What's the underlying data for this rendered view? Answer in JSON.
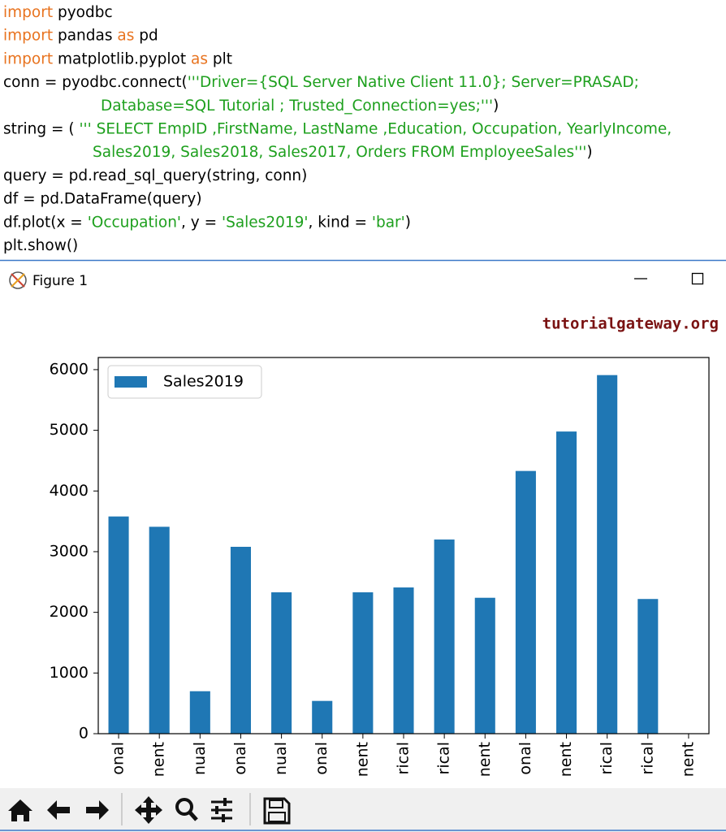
{
  "code": {
    "lines": [
      [
        {
          "text": "import",
          "color": "#e8731f"
        },
        {
          "text": " pyodbc",
          "color": "#000000"
        }
      ],
      [
        {
          "text": "import",
          "color": "#e8731f"
        },
        {
          "text": " pandas ",
          "color": "#000000"
        },
        {
          "text": "as",
          "color": "#e8731f"
        },
        {
          "text": " pd",
          "color": "#000000"
        }
      ],
      [
        {
          "text": "import",
          "color": "#e8731f"
        },
        {
          "text": " matplotlib.pyplot ",
          "color": "#000000"
        },
        {
          "text": "as",
          "color": "#e8731f"
        },
        {
          "text": " plt",
          "color": "#000000"
        }
      ],
      [
        {
          "text": "conn = pyodbc.connect(",
          "color": "#000000"
        },
        {
          "text": "'''Driver={SQL Server Native Client 11.0}; Server=PRASAD;",
          "color": "#1ea01e"
        }
      ],
      [
        {
          "text": "Database=SQL Tutorial ; Trusted_Connection=yes;'''",
          "color": "#1ea01e"
        },
        {
          "text": ")",
          "color": "#000000"
        }
      ],
      [
        {
          "text": "string = ( ",
          "color": "#000000"
        },
        {
          "text": "''' SELECT EmpID ,FirstName, LastName ,Education, Occupation, YearlyIncome,",
          "color": "#1ea01e"
        }
      ],
      [
        {
          "text": "Sales2019, Sales2018, Sales2017, Orders FROM EmployeeSales'''",
          "color": "#1ea01e"
        },
        {
          "text": ")",
          "color": "#000000"
        }
      ],
      [
        {
          "text": "query = pd.read_sql_query(string, conn)",
          "color": "#000000"
        }
      ],
      [
        {
          "text": "df = pd.DataFrame(query)",
          "color": "#000000"
        }
      ],
      [
        {
          "text": "df.plot(x = ",
          "color": "#000000"
        },
        {
          "text": "'Occupation'",
          "color": "#1ea01e"
        },
        {
          "text": ", y = ",
          "color": "#000000"
        },
        {
          "text": "'Sales2019'",
          "color": "#1ea01e"
        },
        {
          "text": ", kind = ",
          "color": "#000000"
        },
        {
          "text": "'bar'",
          "color": "#1ea01e"
        },
        {
          "text": ")",
          "color": "#000000"
        }
      ],
      [
        {
          "text": "plt.show()",
          "color": "#000000"
        }
      ]
    ]
  },
  "window": {
    "title": "Figure 1"
  },
  "watermark": "tutorialgateway.org",
  "chart_data": {
    "type": "bar",
    "categories": [
      "onal",
      "nent",
      "nual",
      "onal",
      "nual",
      "onal",
      "nent",
      "rical",
      "rical",
      "nent",
      "onal",
      "nent",
      "rical",
      "rical",
      "nent"
    ],
    "series": [
      {
        "name": "Sales2019",
        "color": "#1f77b4",
        "values": [
          3580,
          3410,
          700,
          3080,
          2330,
          540,
          2330,
          2410,
          3200,
          2240,
          4330,
          4980,
          5910,
          2220,
          0
        ]
      }
    ],
    "ylim": [
      0,
      6200
    ],
    "yticks": [
      0,
      1000,
      2000,
      3000,
      4000,
      5000,
      6000
    ],
    "legend": "upper-left",
    "grid": false
  }
}
